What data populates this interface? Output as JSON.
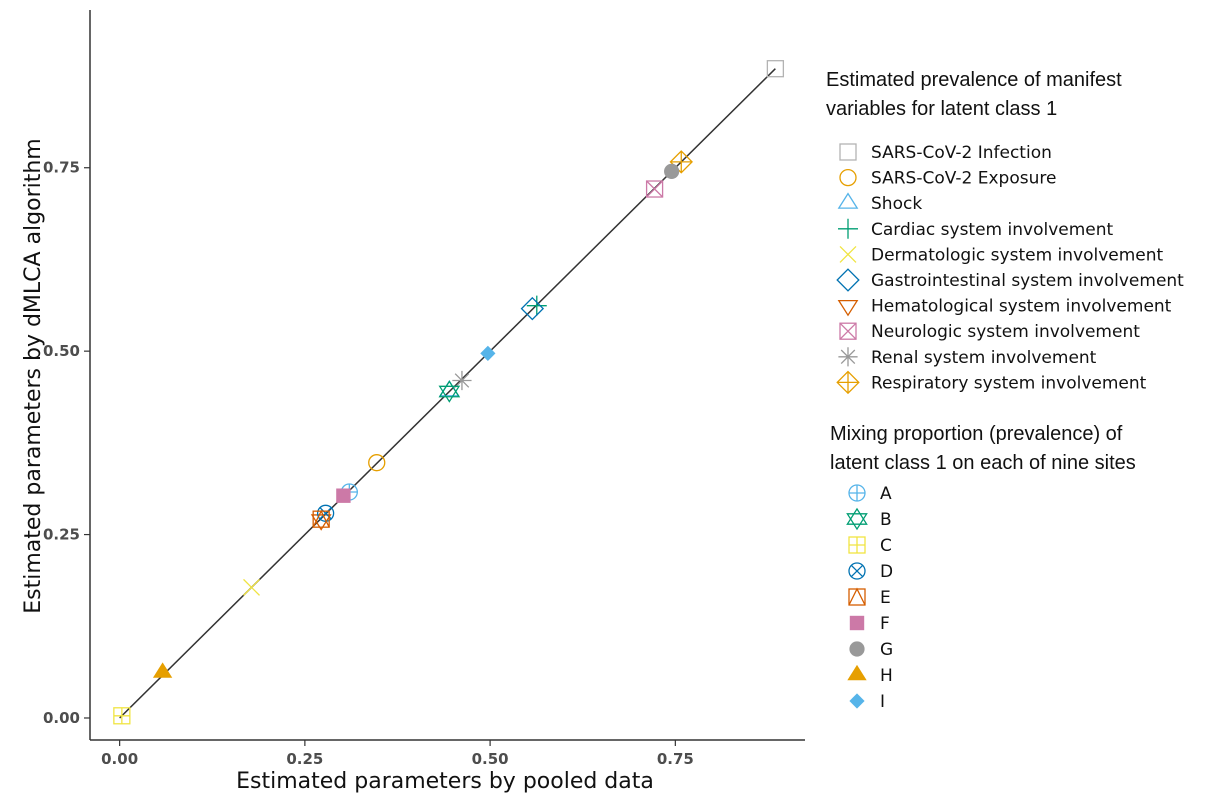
{
  "chart_data": {
    "type": "scatter",
    "xlabel": "Estimated parameters by pooled data",
    "ylabel": "Estimated parameters by dMLCA algorithm",
    "xlim": [
      -0.04,
      0.925
    ],
    "ylim": [
      -0.03,
      0.965
    ],
    "xticks": [
      0,
      0.25,
      0.5,
      0.75
    ],
    "yticks": [
      0,
      0.25,
      0.5,
      0.75
    ],
    "xtick_labels": [
      "0.00",
      "0.25",
      "0.50",
      "0.75"
    ],
    "ytick_labels": [
      "0.00",
      "0.25",
      "0.50",
      "0.75"
    ],
    "grid": false,
    "reference_line": {
      "from": [
        0.0,
        0.0
      ],
      "to": [
        0.885,
        0.885
      ]
    },
    "legend_variables": {
      "title_lines": [
        "Estimated prevalence of manifest",
        "variables for latent class 1"
      ],
      "items": [
        {
          "label": "SARS-CoV-2 Infection",
          "shape": "square-open",
          "color": "#b3b3b3"
        },
        {
          "label": "SARS-CoV-2 Exposure",
          "shape": "circle-open",
          "color": "#e69f00"
        },
        {
          "label": "Shock",
          "shape": "triangle-open",
          "color": "#56b4e9"
        },
        {
          "label": "Cardiac system involvement",
          "shape": "plus",
          "color": "#009e73"
        },
        {
          "label": "Dermatologic system involvement",
          "shape": "cross",
          "color": "#f0e442"
        },
        {
          "label": "Gastrointestinal system involvement",
          "shape": "diamond-open",
          "color": "#0072b2"
        },
        {
          "label": "Hematological system involvement",
          "shape": "triangle-down-open",
          "color": "#d55e00"
        },
        {
          "label": "Neurologic system involvement",
          "shape": "square-cross",
          "color": "#cc79a7"
        },
        {
          "label": "Renal system involvement",
          "shape": "asterisk",
          "color": "#999999"
        },
        {
          "label": "Respiratory system involvement",
          "shape": "diamond-plus",
          "color": "#e69f00"
        }
      ]
    },
    "legend_sites": {
      "title_lines": [
        "Mixing proportion (prevalence) of",
        "latent class 1 on each of nine sites"
      ],
      "items": [
        {
          "label": "A",
          "shape": "circle-plus",
          "color": "#56b4e9"
        },
        {
          "label": "B",
          "shape": "star-of-david",
          "color": "#009e73"
        },
        {
          "label": "C",
          "shape": "square-plus",
          "color": "#f0e442"
        },
        {
          "label": "D",
          "shape": "circle-cross",
          "color": "#0072b2"
        },
        {
          "label": "E",
          "shape": "square-triangle",
          "color": "#d55e00"
        },
        {
          "label": "F",
          "shape": "square-filled",
          "color": "#cc79a7"
        },
        {
          "label": "G",
          "shape": "circle-filled",
          "color": "#999999"
        },
        {
          "label": "H",
          "shape": "triangle-filled",
          "color": "#e69f00"
        },
        {
          "label": "I",
          "shape": "diamond-filled",
          "color": "#56b4e9"
        }
      ]
    },
    "points": [
      {
        "name": "SARS-CoV-2 Infection",
        "x": 0.885,
        "y": 0.885,
        "shape": "square-open",
        "color": "#b3b3b3"
      },
      {
        "name": "SARS-CoV-2 Exposure",
        "x": 0.347,
        "y": 0.348,
        "shape": "circle-open",
        "color": "#e69f00"
      },
      {
        "name": "Shock",
        "x": 0.445,
        "y": 0.446,
        "shape": "triangle-open",
        "color": "#56b4e9"
      },
      {
        "name": "Cardiac system involvement",
        "x": 0.563,
        "y": 0.562,
        "shape": "plus",
        "color": "#009e73"
      },
      {
        "name": "Dermatologic system involvement",
        "x": 0.178,
        "y": 0.178,
        "shape": "cross",
        "color": "#f0e442"
      },
      {
        "name": "Gastrointestinal system involvement",
        "x": 0.557,
        "y": 0.558,
        "shape": "diamond-open",
        "color": "#0072b2"
      },
      {
        "name": "Hematological system involvement",
        "x": 0.272,
        "y": 0.27,
        "shape": "triangle-down-open",
        "color": "#d55e00"
      },
      {
        "name": "Neurologic system involvement",
        "x": 0.722,
        "y": 0.721,
        "shape": "square-cross",
        "color": "#cc79a7"
      },
      {
        "name": "Renal system involvement",
        "x": 0.462,
        "y": 0.46,
        "shape": "asterisk",
        "color": "#999999"
      },
      {
        "name": "Respiratory system involvement",
        "x": 0.758,
        "y": 0.758,
        "shape": "diamond-plus",
        "color": "#e69f00"
      },
      {
        "name": "A",
        "x": 0.31,
        "y": 0.308,
        "shape": "circle-plus",
        "color": "#56b4e9"
      },
      {
        "name": "B",
        "x": 0.445,
        "y": 0.445,
        "shape": "star-of-david",
        "color": "#009e73"
      },
      {
        "name": "C",
        "x": 0.003,
        "y": 0.003,
        "shape": "square-plus",
        "color": "#f0e442"
      },
      {
        "name": "D",
        "x": 0.278,
        "y": 0.279,
        "shape": "circle-cross",
        "color": "#0072b2"
      },
      {
        "name": "E",
        "x": 0.272,
        "y": 0.271,
        "shape": "square-triangle",
        "color": "#d55e00"
      },
      {
        "name": "F",
        "x": 0.302,
        "y": 0.303,
        "shape": "square-filled",
        "color": "#cc79a7"
      },
      {
        "name": "G",
        "x": 0.745,
        "y": 0.745,
        "shape": "circle-filled",
        "color": "#999999"
      },
      {
        "name": "H",
        "x": 0.058,
        "y": 0.062,
        "shape": "triangle-filled",
        "color": "#e69f00"
      },
      {
        "name": "I",
        "x": 0.497,
        "y": 0.497,
        "shape": "diamond-filled",
        "color": "#56b4e9"
      }
    ]
  }
}
